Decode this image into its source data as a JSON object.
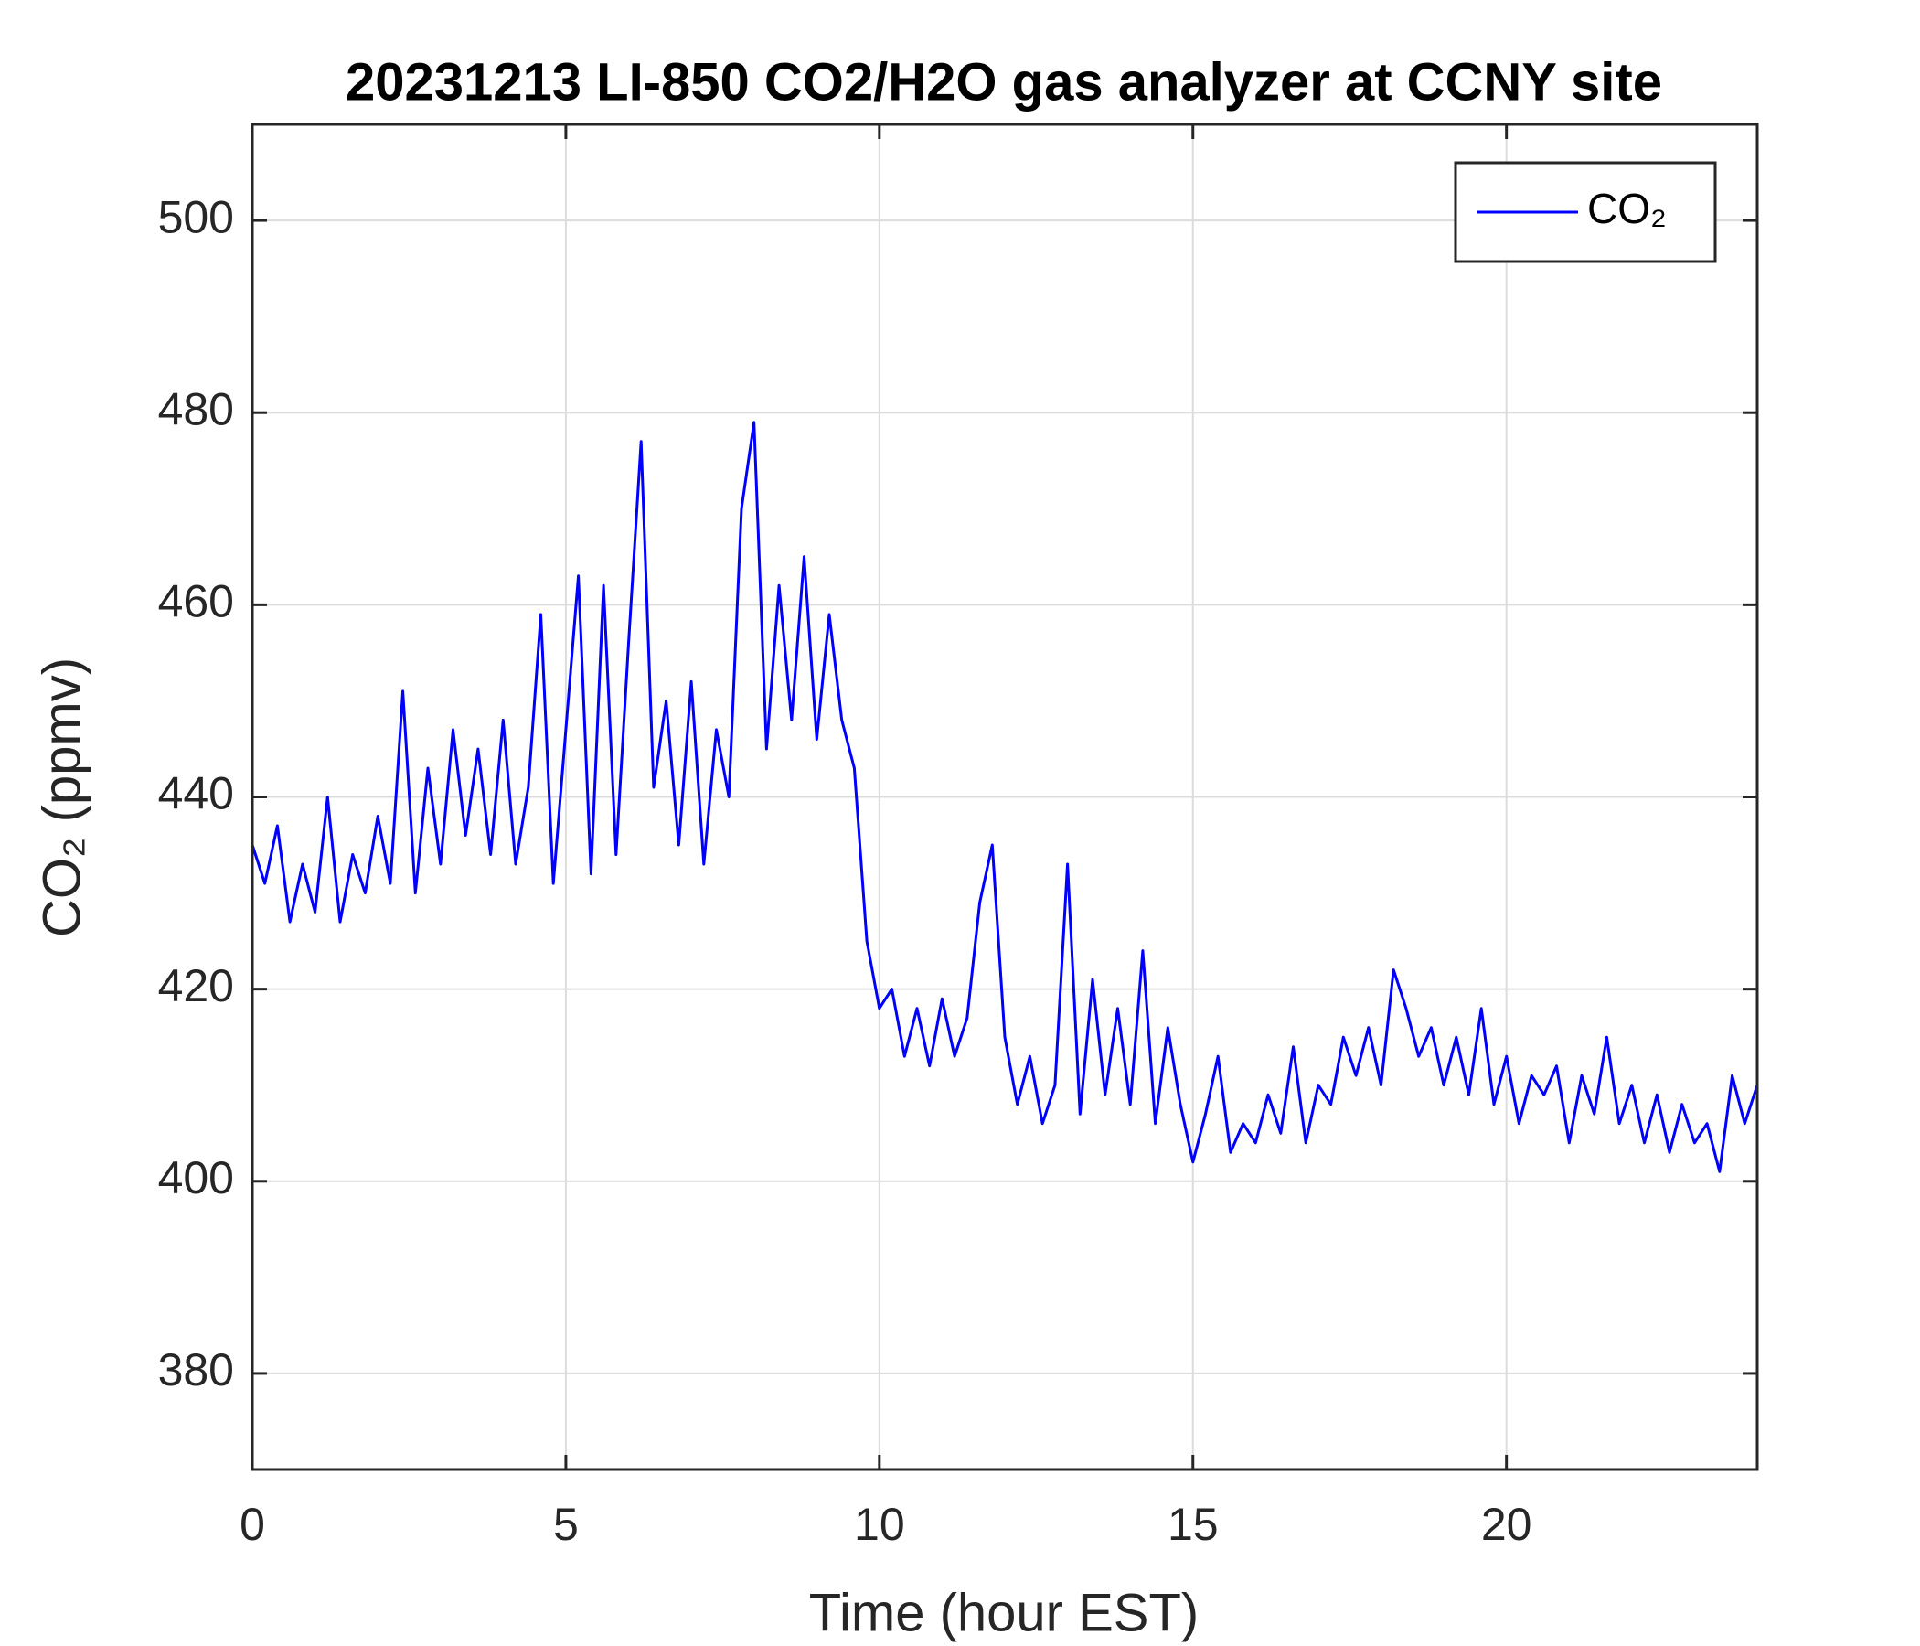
{
  "chart_data": {
    "type": "line",
    "title": "20231213 LI-850 CO2/H2O gas analyzer at CCNY site",
    "x_label": "Time (hour EST)",
    "y_label": "CO₂ (ppmv)",
    "xlim": [
      0,
      24
    ],
    "ylim": [
      370,
      510
    ],
    "xticks": [
      0,
      5,
      10,
      15,
      20
    ],
    "yticks": [
      380,
      400,
      420,
      440,
      460,
      480,
      500
    ],
    "grid": true,
    "legend": "upper right",
    "x": [
      0,
      0.2,
      0.4,
      0.6,
      0.8,
      1,
      1.2,
      1.4,
      1.6,
      1.8,
      2,
      2.2,
      2.4,
      2.6,
      2.8,
      3,
      3.2,
      3.4,
      3.6,
      3.8,
      4,
      4.2,
      4.4,
      4.6,
      4.8,
      5,
      5.2,
      5.4,
      5.6,
      5.8,
      6,
      6.2,
      6.4,
      6.6,
      6.8,
      7,
      7.2,
      7.4,
      7.6,
      7.8,
      8,
      8.2,
      8.4,
      8.6,
      8.8,
      9,
      9.2,
      9.4,
      9.6,
      9.8,
      10,
      10.2,
      10.4,
      10.6,
      10.8,
      11,
      11.2,
      11.4,
      11.6,
      11.8,
      12,
      12.2,
      12.4,
      12.6,
      12.8,
      13,
      13.2,
      13.4,
      13.6,
      13.8,
      14,
      14.2,
      14.4,
      14.6,
      14.8,
      15,
      15.2,
      15.4,
      15.6,
      15.8,
      16,
      16.2,
      16.4,
      16.6,
      16.8,
      17,
      17.2,
      17.4,
      17.6,
      17.8,
      18,
      18.2,
      18.4,
      18.6,
      18.8,
      19,
      19.2,
      19.4,
      19.6,
      19.8,
      20,
      20.2,
      20.4,
      20.6,
      20.8,
      21,
      21.2,
      21.4,
      21.6,
      21.8,
      22,
      22.2,
      22.4,
      22.6,
      22.8,
      23,
      23.2,
      23.4,
      23.6,
      23.8,
      24
    ],
    "series": [
      {
        "name": "CO₂",
        "color": "#0000ff",
        "values": [
          435,
          431,
          437,
          427,
          433,
          428,
          440,
          427,
          434,
          430,
          438,
          431,
          451,
          430,
          443,
          433,
          447,
          436,
          445,
          434,
          448,
          433,
          441,
          459,
          431,
          447,
          463,
          432,
          462,
          434,
          456,
          477,
          441,
          450,
          435,
          452,
          433,
          447,
          440,
          470,
          479,
          445,
          462,
          448,
          465,
          446,
          459,
          448,
          443,
          425,
          418,
          420,
          413,
          418,
          412,
          419,
          413,
          417,
          429,
          435,
          415,
          408,
          413,
          406,
          410,
          433,
          407,
          421,
          409,
          418,
          408,
          424,
          406,
          416,
          408,
          402,
          407,
          413,
          403,
          406,
          404,
          409,
          405,
          414,
          404,
          410,
          408,
          415,
          411,
          416,
          410,
          422,
          418,
          413,
          416,
          410,
          415,
          409,
          418,
          408,
          413,
          406,
          411,
          409,
          412,
          404,
          411,
          407,
          415,
          406,
          410,
          404,
          409,
          403,
          408,
          404,
          406,
          401,
          411,
          406,
          410
        ]
      }
    ]
  }
}
